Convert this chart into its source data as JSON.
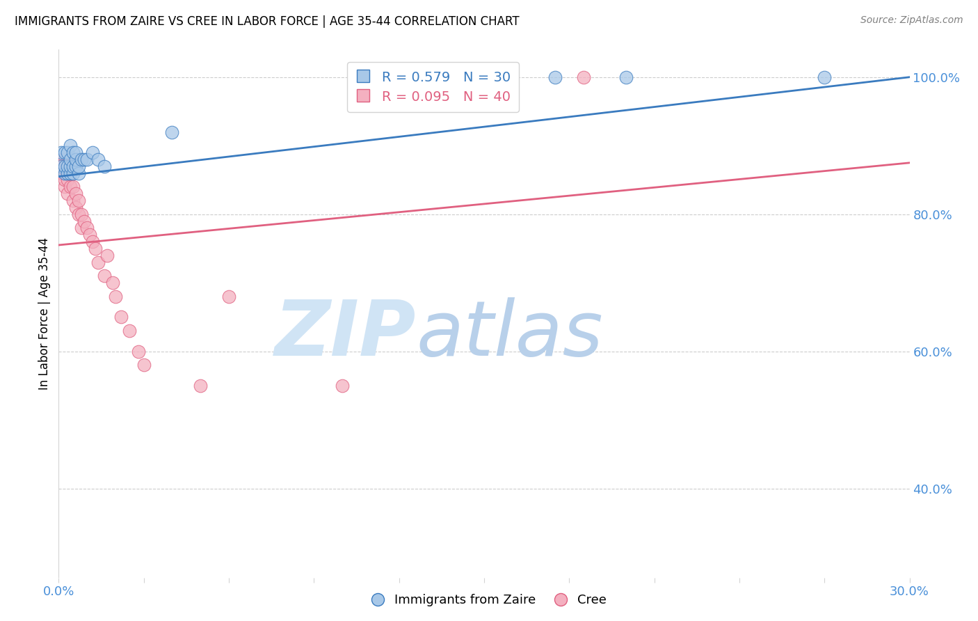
{
  "title": "IMMIGRANTS FROM ZAIRE VS CREE IN LABOR FORCE | AGE 35-44 CORRELATION CHART",
  "source": "Source: ZipAtlas.com",
  "xlabel": "",
  "ylabel": "In Labor Force | Age 35-44",
  "xlim": [
    0.0,
    0.3
  ],
  "ylim": [
    0.27,
    1.04
  ],
  "x_ticks": [
    0.0,
    0.03,
    0.06,
    0.09,
    0.12,
    0.15,
    0.18,
    0.21,
    0.24,
    0.27,
    0.3
  ],
  "y_ticks_right": [
    0.4,
    0.6,
    0.8,
    1.0
  ],
  "y_tick_labels_right": [
    "40.0%",
    "60.0%",
    "80.0%",
    "100.0%"
  ],
  "zaire_R": 0.579,
  "zaire_N": 30,
  "cree_R": 0.095,
  "cree_N": 40,
  "zaire_color": "#a8c8e8",
  "cree_color": "#f4b0c0",
  "zaire_line_color": "#3a7bbf",
  "cree_line_color": "#e06080",
  "background_color": "#ffffff",
  "grid_color": "#cccccc",
  "axis_color": "#4a90d9",
  "zaire_x": [
    0.001,
    0.001,
    0.002,
    0.002,
    0.002,
    0.003,
    0.003,
    0.003,
    0.004,
    0.004,
    0.004,
    0.004,
    0.005,
    0.005,
    0.005,
    0.006,
    0.006,
    0.006,
    0.007,
    0.007,
    0.008,
    0.009,
    0.01,
    0.012,
    0.014,
    0.016,
    0.04,
    0.175,
    0.2,
    0.27
  ],
  "zaire_y": [
    0.87,
    0.89,
    0.86,
    0.87,
    0.89,
    0.86,
    0.87,
    0.89,
    0.86,
    0.87,
    0.88,
    0.9,
    0.86,
    0.87,
    0.89,
    0.87,
    0.88,
    0.89,
    0.86,
    0.87,
    0.88,
    0.88,
    0.88,
    0.89,
    0.88,
    0.87,
    0.92,
    1.0,
    1.0,
    1.0
  ],
  "cree_x": [
    0.001,
    0.001,
    0.001,
    0.002,
    0.002,
    0.002,
    0.003,
    0.003,
    0.003,
    0.003,
    0.004,
    0.004,
    0.004,
    0.004,
    0.005,
    0.005,
    0.006,
    0.006,
    0.007,
    0.007,
    0.008,
    0.008,
    0.009,
    0.01,
    0.011,
    0.012,
    0.013,
    0.014,
    0.016,
    0.017,
    0.019,
    0.02,
    0.022,
    0.025,
    0.028,
    0.03,
    0.05,
    0.06,
    0.1,
    0.185
  ],
  "cree_y": [
    0.86,
    0.87,
    0.88,
    0.84,
    0.85,
    0.88,
    0.83,
    0.85,
    0.86,
    0.87,
    0.84,
    0.86,
    0.87,
    0.88,
    0.82,
    0.84,
    0.81,
    0.83,
    0.8,
    0.82,
    0.78,
    0.8,
    0.79,
    0.78,
    0.77,
    0.76,
    0.75,
    0.73,
    0.71,
    0.74,
    0.7,
    0.68,
    0.65,
    0.63,
    0.6,
    0.58,
    0.55,
    0.68,
    0.55,
    1.0
  ],
  "zaire_trend_x": [
    0.0,
    0.3
  ],
  "zaire_trend_y": [
    0.855,
    1.0
  ],
  "cree_trend_x": [
    0.0,
    0.3
  ],
  "cree_trend_y": [
    0.755,
    0.875
  ]
}
